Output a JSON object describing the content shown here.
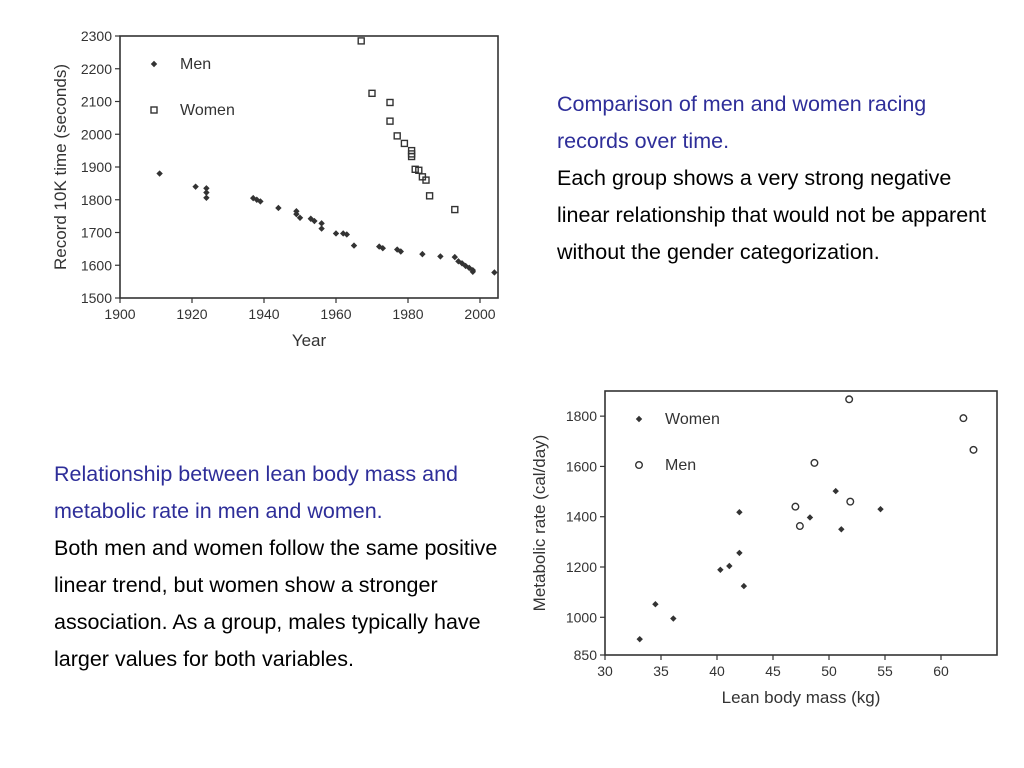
{
  "colors": {
    "heading": "#2e2e99",
    "body": "#000000",
    "axis": "#333333"
  },
  "block1": {
    "heading": "Comparison of men and women racing records over time.",
    "body": "Each group shows a very strong negative linear relationship that would not be apparent without the gender categorization."
  },
  "block2": {
    "heading": "Relationship between lean body mass and metabolic rate in men and women.",
    "body": "Both men and women follow the same positive linear trend, but women show a stronger association. As a group, males typically have larger values for both variables."
  },
  "chart_data": [
    {
      "type": "scatter",
      "xlabel": "Year",
      "ylabel": "Record 10K time (seconds)",
      "xlim": [
        1900,
        2005
      ],
      "ylim": [
        1500,
        2300
      ],
      "xticks": [
        1900,
        1920,
        1940,
        1960,
        1980,
        2000
      ],
      "yticks": [
        1500,
        1600,
        1700,
        1800,
        1900,
        2000,
        2100,
        2200,
        2300
      ],
      "legend_position": "top-left",
      "series": [
        {
          "name": "Men",
          "marker": "filled-diamond",
          "points": [
            [
              1911,
              1880
            ],
            [
              1921,
              1840
            ],
            [
              1924,
              1835
            ],
            [
              1924,
              1822
            ],
            [
              1924,
              1806
            ],
            [
              1937,
              1805
            ],
            [
              1938,
              1800
            ],
            [
              1939,
              1795
            ],
            [
              1944,
              1775
            ],
            [
              1949,
              1765
            ],
            [
              1949,
              1756
            ],
            [
              1950,
              1745
            ],
            [
              1953,
              1742
            ],
            [
              1954,
              1735
            ],
            [
              1956,
              1728
            ],
            [
              1956,
              1712
            ],
            [
              1960,
              1697
            ],
            [
              1962,
              1697
            ],
            [
              1963,
              1694
            ],
            [
              1965,
              1660
            ],
            [
              1972,
              1657
            ],
            [
              1973,
              1652
            ],
            [
              1977,
              1648
            ],
            [
              1978,
              1642
            ],
            [
              1984,
              1634
            ],
            [
              1989,
              1627
            ],
            [
              1993,
              1625
            ],
            [
              1994,
              1612
            ],
            [
              1995,
              1606
            ],
            [
              1996,
              1598
            ],
            [
              1997,
              1592
            ],
            [
              1998,
              1585
            ],
            [
              1998,
              1580
            ],
            [
              2004,
              1578
            ]
          ]
        },
        {
          "name": "Women",
          "marker": "open-square",
          "points": [
            [
              1967,
              2285
            ],
            [
              1970,
              2125
            ],
            [
              1975,
              2097
            ],
            [
              1975,
              2040
            ],
            [
              1977,
              1995
            ],
            [
              1979,
              1972
            ],
            [
              1981,
              1940
            ],
            [
              1981,
              1950
            ],
            [
              1981,
              1932
            ],
            [
              1982,
              1893
            ],
            [
              1983,
              1890
            ],
            [
              1984,
              1870
            ],
            [
              1985,
              1860
            ],
            [
              1986,
              1812
            ],
            [
              1993,
              1770
            ]
          ]
        }
      ]
    },
    {
      "type": "scatter",
      "xlabel": "Lean body mass (kg)",
      "ylabel": "Metabolic rate (cal/day)",
      "xlim": [
        30,
        65
      ],
      "ylim": [
        850,
        1900
      ],
      "xticks": [
        30,
        35,
        40,
        45,
        50,
        55,
        60
      ],
      "yticks": [
        850,
        1000,
        1200,
        1400,
        1600,
        1800
      ],
      "legend_position": "top-left",
      "series": [
        {
          "name": "Women",
          "marker": "filled-diamond",
          "points": [
            [
              33.1,
              913
            ],
            [
              34.5,
              1052
            ],
            [
              36.1,
              995
            ],
            [
              40.3,
              1189
            ],
            [
              41.1,
              1204
            ],
            [
              42.0,
              1418
            ],
            [
              42.0,
              1256
            ],
            [
              42.4,
              1124
            ],
            [
              48.3,
              1397
            ],
            [
              50.6,
              1502
            ],
            [
              51.1,
              1350
            ],
            [
              54.6,
              1430
            ]
          ]
        },
        {
          "name": "Men",
          "marker": "open-circle",
          "points": [
            [
              47.0,
              1440
            ],
            [
              47.4,
              1363
            ],
            [
              48.7,
              1614
            ],
            [
              51.8,
              1867
            ],
            [
              51.9,
              1460
            ],
            [
              62.0,
              1792
            ],
            [
              62.9,
              1666
            ]
          ]
        }
      ]
    }
  ]
}
